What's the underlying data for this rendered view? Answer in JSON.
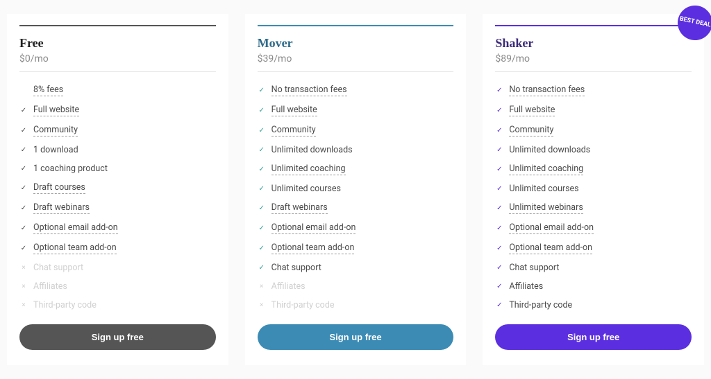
{
  "colors": {
    "bar_free": "#555555",
    "bar_mover": "#3b8bb5",
    "bar_shaker": "#5b2fe0",
    "btn_free": "#555555",
    "btn_mover": "#3b8bb5",
    "btn_shaker": "#5b2fe0",
    "check_free": "#4a4a4a",
    "check_mover": "#2fa39a",
    "check_shaker": "#5b2fe0",
    "name_free": "#222222",
    "name_mover": "#2b6a8a",
    "name_shaker": "#3c2a7a",
    "badge_bg": "#5b2fe0"
  },
  "cta_label": "Sign up free",
  "badge_text": "BEST DEAL",
  "plans": [
    {
      "id": "free",
      "name": "Free",
      "price": "$0/mo",
      "has_badge": false,
      "features": [
        {
          "label": "8% fees",
          "included": true,
          "underlined": true,
          "hide_icon": true
        },
        {
          "label": "Full website",
          "included": true,
          "underlined": true
        },
        {
          "label": "Community",
          "included": true,
          "underlined": true
        },
        {
          "label": "1 download",
          "included": true,
          "underlined": false
        },
        {
          "label": "1 coaching product",
          "included": true,
          "underlined": false
        },
        {
          "label": "Draft courses",
          "included": true,
          "underlined": true
        },
        {
          "label": "Draft webinars",
          "included": true,
          "underlined": true
        },
        {
          "label": "Optional email add-on",
          "included": true,
          "underlined": true
        },
        {
          "label": "Optional team add-on",
          "included": true,
          "underlined": true
        },
        {
          "label": "Chat support",
          "included": false,
          "underlined": false
        },
        {
          "label": "Affiliates",
          "included": false,
          "underlined": false
        },
        {
          "label": "Third-party code",
          "included": false,
          "underlined": false
        }
      ]
    },
    {
      "id": "mover",
      "name": "Mover",
      "price": "$39/mo",
      "has_badge": false,
      "features": [
        {
          "label": "No transaction fees",
          "included": true,
          "underlined": true
        },
        {
          "label": "Full website",
          "included": true,
          "underlined": true
        },
        {
          "label": "Community",
          "included": true,
          "underlined": true
        },
        {
          "label": "Unlimited downloads",
          "included": true,
          "underlined": false
        },
        {
          "label": "Unlimited coaching",
          "included": true,
          "underlined": true
        },
        {
          "label": "Unlimited courses",
          "included": true,
          "underlined": false
        },
        {
          "label": "Draft webinars",
          "included": true,
          "underlined": true
        },
        {
          "label": "Optional email add-on",
          "included": true,
          "underlined": true
        },
        {
          "label": "Optional team add-on",
          "included": true,
          "underlined": true
        },
        {
          "label": "Chat support",
          "included": true,
          "underlined": false
        },
        {
          "label": "Affiliates",
          "included": false,
          "underlined": false
        },
        {
          "label": "Third-party code",
          "included": false,
          "underlined": false
        }
      ]
    },
    {
      "id": "shaker",
      "name": "Shaker",
      "price": "$89/mo",
      "has_badge": true,
      "features": [
        {
          "label": "No transaction fees",
          "included": true,
          "underlined": true
        },
        {
          "label": "Full website",
          "included": true,
          "underlined": true
        },
        {
          "label": "Community",
          "included": true,
          "underlined": true
        },
        {
          "label": "Unlimited downloads",
          "included": true,
          "underlined": false
        },
        {
          "label": "Unlimited coaching",
          "included": true,
          "underlined": true
        },
        {
          "label": "Unlimited courses",
          "included": true,
          "underlined": false
        },
        {
          "label": "Unlimited webinars",
          "included": true,
          "underlined": true
        },
        {
          "label": "Optional email add-on",
          "included": true,
          "underlined": true
        },
        {
          "label": "Optional team add-on",
          "included": true,
          "underlined": true
        },
        {
          "label": "Chat support",
          "included": true,
          "underlined": false
        },
        {
          "label": "Affiliates",
          "included": true,
          "underlined": false
        },
        {
          "label": "Third-party code",
          "included": true,
          "underlined": false
        }
      ]
    }
  ]
}
